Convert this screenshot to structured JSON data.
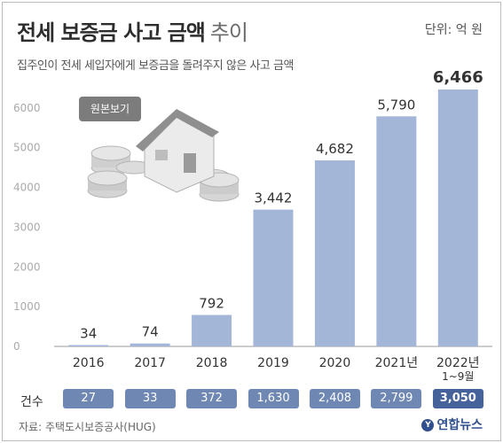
{
  "header": {
    "title_main": "전세 보증금 사고 금액",
    "title_light": "추이",
    "unit": "단위: 억 원",
    "subtitle": "집주인이 전세 세입자에게 보증금을 돌려주지 않은 사고 금액"
  },
  "view_button": "원본보기",
  "counts": {
    "label": "건수",
    "values": [
      "27",
      "33",
      "372",
      "1,630",
      "2,408",
      "2,799",
      "3,050"
    ]
  },
  "footer": {
    "source": "자료: 주택도시보증공사(HUG)",
    "logo": "연합뉴스"
  },
  "colors": {
    "bar": "#a3b6d8",
    "pill": "#6f88b3",
    "pill_highlight": "#45629b",
    "axis": "#999999"
  },
  "chart_data": {
    "type": "bar",
    "categories": [
      "2016",
      "2017",
      "2018",
      "2019",
      "2020",
      "2021년",
      "2022년\n1~9월"
    ],
    "values": [
      34,
      74,
      792,
      3442,
      4682,
      5790,
      6466
    ],
    "value_labels": [
      "34",
      "74",
      "792",
      "3,442",
      "4,682",
      "5,790",
      "6,466"
    ],
    "yticks": [
      0,
      1000,
      2000,
      3000,
      4000,
      5000,
      6000
    ],
    "ylim": [
      0,
      6800
    ],
    "grid": false
  }
}
